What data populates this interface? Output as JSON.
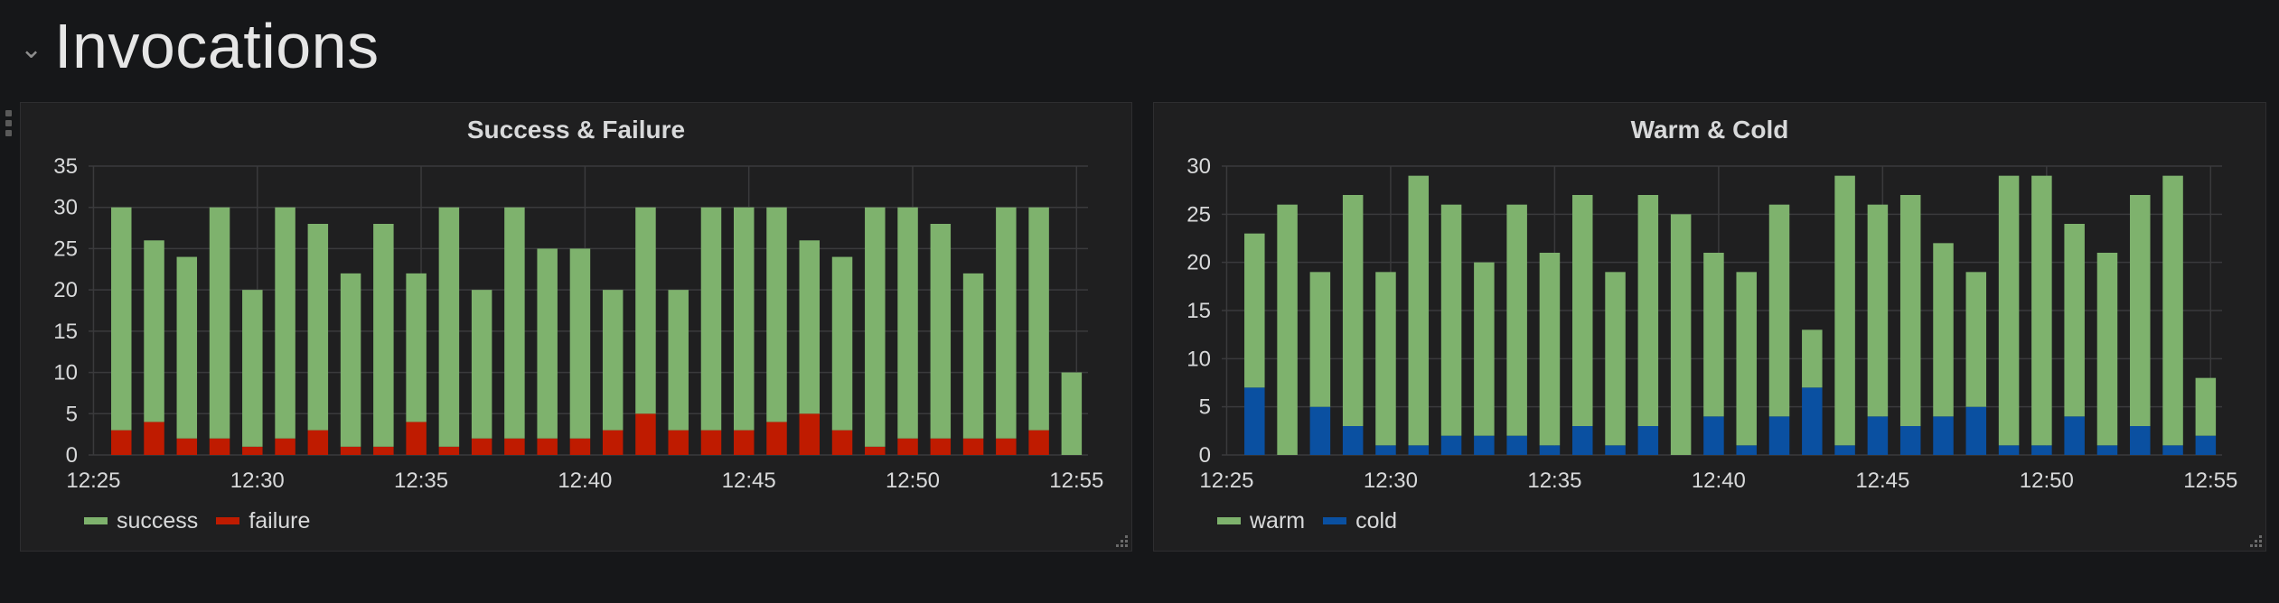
{
  "row": {
    "title": "Invocations"
  },
  "panels": [
    {
      "title": "Success & Failure",
      "legend": [
        {
          "label": "success",
          "color": "#7eb26d"
        },
        {
          "label": "failure",
          "color": "#bf1b00"
        }
      ]
    },
    {
      "title": "Warm & Cold",
      "legend": [
        {
          "label": "warm",
          "color": "#7eb26d"
        },
        {
          "label": "cold",
          "color": "#0a50a1"
        }
      ]
    }
  ],
  "chart_data": [
    {
      "type": "bar",
      "stacked": true,
      "title": "Success & Failure",
      "x_tick_labels": [
        "12:25",
        "12:30",
        "12:35",
        "12:40",
        "12:45",
        "12:50",
        "12:55"
      ],
      "y_ticks": [
        0,
        5,
        10,
        15,
        20,
        25,
        30,
        35
      ],
      "ylim": [
        0,
        35
      ],
      "grid": true,
      "legend_position": "bottom-left",
      "series": [
        {
          "name": "failure",
          "color": "#bf1b00",
          "values": [
            3,
            4,
            2,
            2,
            1,
            2,
            3,
            1,
            1,
            4,
            1,
            2,
            2,
            2,
            2,
            3,
            5,
            3,
            3,
            3,
            4,
            5,
            3,
            1,
            2,
            2,
            2,
            2,
            3,
            0
          ]
        },
        {
          "name": "success",
          "color": "#7eb26d",
          "values": [
            27,
            22,
            22,
            28,
            19,
            28,
            25,
            21,
            27,
            18,
            29,
            18,
            28,
            23,
            23,
            17,
            25,
            17,
            27,
            27,
            26,
            21,
            21,
            29,
            28,
            26,
            20,
            28,
            27,
            10
          ]
        }
      ]
    },
    {
      "type": "bar",
      "stacked": true,
      "title": "Warm & Cold",
      "x_tick_labels": [
        "12:25",
        "12:30",
        "12:35",
        "12:40",
        "12:45",
        "12:50",
        "12:55"
      ],
      "y_ticks": [
        0,
        5,
        10,
        15,
        20,
        25,
        30
      ],
      "ylim": [
        0,
        30
      ],
      "grid": true,
      "legend_position": "bottom-left",
      "series": [
        {
          "name": "cold",
          "color": "#0a50a1",
          "values": [
            7,
            0,
            5,
            3,
            1,
            1,
            2,
            2,
            2,
            1,
            3,
            1,
            3,
            0,
            4,
            1,
            4,
            7,
            1,
            4,
            3,
            4,
            5,
            1,
            1,
            4,
            1,
            3,
            1,
            2
          ]
        },
        {
          "name": "warm",
          "color": "#7eb26d",
          "values": [
            16,
            26,
            14,
            24,
            18,
            28,
            24,
            18,
            24,
            20,
            24,
            18,
            24,
            25,
            17,
            18,
            22,
            6,
            28,
            22,
            24,
            18,
            14,
            28,
            28,
            20,
            20,
            24,
            28,
            6
          ]
        }
      ]
    }
  ]
}
